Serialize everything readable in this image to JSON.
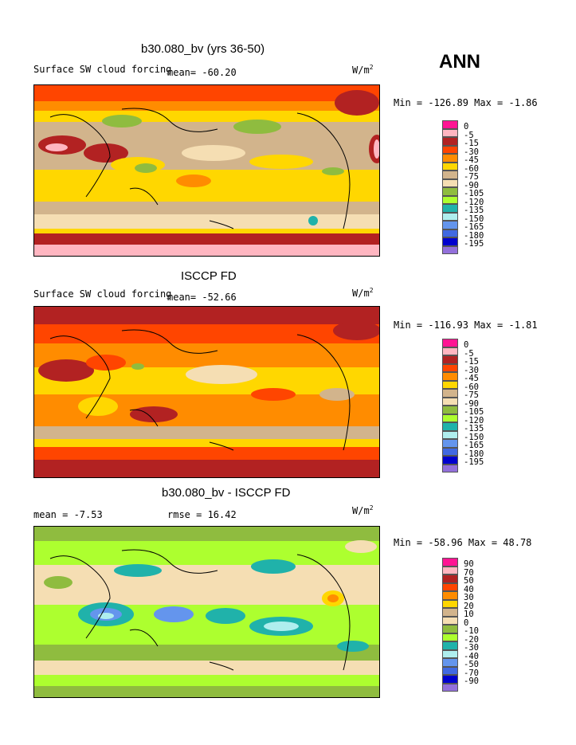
{
  "season": "ANN",
  "panels": [
    {
      "title": "b30.080_bv (yrs 36-50)",
      "left_text": "Surface SW cloud forcing",
      "mean_text": "mean= -60.20",
      "units": "W/m",
      "units_exp": "2",
      "minmax": "Min = -126.89 Max =  -1.86",
      "legend_colors": [
        "#ff1493",
        "#ffb6c1",
        "#b22222",
        "#ff4500",
        "#ff8c00",
        "#ffd700",
        "#d2b48c",
        "#f5deb3",
        "#8fbc3f",
        "#adff2f",
        "#20b2aa",
        "#afeeee",
        "#6495ed",
        "#4169e1",
        "#0000cd",
        "#9370db"
      ],
      "legend_labels": [
        "0",
        "-5",
        "-15",
        "-30",
        "-45",
        "-60",
        "-75",
        "-90",
        "-105",
        "-120",
        "-135",
        "-150",
        "-165",
        "-180",
        "-195"
      ]
    },
    {
      "title": "ISCCP FD",
      "left_text": "Surface SW cloud forcing",
      "mean_text": "mean= -52.66",
      "units": "W/m",
      "units_exp": "2",
      "minmax": "Min = -116.93 Max =  -1.81",
      "legend_colors": [
        "#ff1493",
        "#ffb6c1",
        "#b22222",
        "#ff4500",
        "#ff8c00",
        "#ffd700",
        "#d2b48c",
        "#f5deb3",
        "#8fbc3f",
        "#adff2f",
        "#20b2aa",
        "#afeeee",
        "#6495ed",
        "#4169e1",
        "#0000cd",
        "#9370db"
      ],
      "legend_labels": [
        "0",
        "-5",
        "-15",
        "-30",
        "-45",
        "-60",
        "-75",
        "-90",
        "-105",
        "-120",
        "-135",
        "-150",
        "-165",
        "-180",
        "-195"
      ]
    },
    {
      "title": "b30.080_bv - ISCCP FD",
      "left_text": "mean =  -7.53",
      "mean_text": "rmse =  16.42",
      "units": "W/m",
      "units_exp": "2",
      "minmax": "Min = -58.96 Max =  48.78",
      "legend_colors": [
        "#ff1493",
        "#ffb6c1",
        "#b22222",
        "#ff4500",
        "#ff8c00",
        "#ffd700",
        "#d2b48c",
        "#f5deb3",
        "#8fbc3f",
        "#adff2f",
        "#20b2aa",
        "#afeeee",
        "#6495ed",
        "#4169e1",
        "#0000cd",
        "#9370db"
      ],
      "legend_labels": [
        "90",
        "70",
        "50",
        "40",
        "30",
        "20",
        "10",
        "0",
        "-10",
        "-20",
        "-30",
        "-40",
        "-50",
        "-70",
        "-90"
      ]
    }
  ]
}
